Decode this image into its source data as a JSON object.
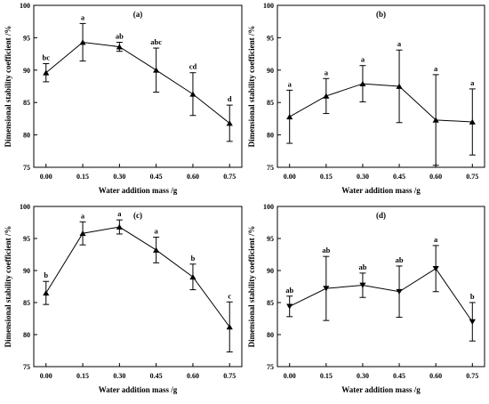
{
  "chart_data": [
    {
      "type": "line",
      "panel_label": "(a)",
      "xlabel": "Water addition mass /g",
      "ylabel": "Dimensional stability coefficient /%",
      "x": [
        0.0,
        0.15,
        0.3,
        0.45,
        0.6,
        0.75
      ],
      "x_tick_labels": [
        "0.00",
        "0.15",
        "0.30",
        "0.45",
        "0.60",
        "0.75"
      ],
      "y_ticks": [
        75,
        80,
        85,
        90,
        95,
        100
      ],
      "ylim": [
        75,
        100
      ],
      "marker": "triangle-up",
      "series": [
        {
          "values": [
            89.6,
            94.3,
            93.6,
            90.0,
            86.3,
            81.8
          ],
          "errors": [
            1.4,
            2.9,
            0.7,
            3.4,
            3.3,
            2.8
          ],
          "significance": [
            "bc",
            "a",
            "ab",
            "abc",
            "cd",
            "d"
          ]
        }
      ]
    },
    {
      "type": "line",
      "panel_label": "(b)",
      "xlabel": "Water addition mass /g",
      "ylabel": "Dimensional stability coefficient /%",
      "x": [
        0.0,
        0.15,
        0.3,
        0.45,
        0.6,
        0.75
      ],
      "x_tick_labels": [
        "0.00",
        "0.15",
        "0.30",
        "0.45",
        "0.60",
        "0.75"
      ],
      "y_ticks": [
        75,
        80,
        85,
        90,
        95,
        100
      ],
      "ylim": [
        75,
        100
      ],
      "marker": "triangle-up",
      "series": [
        {
          "values": [
            82.8,
            86.0,
            87.9,
            87.5,
            82.3,
            82.0
          ],
          "errors": [
            4.1,
            2.7,
            2.8,
            5.6,
            7.0,
            5.1
          ],
          "significance": [
            "a",
            "a",
            "a",
            "a",
            "a",
            "a"
          ]
        }
      ]
    },
    {
      "type": "line",
      "panel_label": "(c)",
      "xlabel": "Water addition mass /g",
      "ylabel": "Dimensional stability coefficient /%",
      "x": [
        0.0,
        0.15,
        0.3,
        0.45,
        0.6,
        0.75
      ],
      "x_tick_labels": [
        "0.00",
        "0.15",
        "0.30",
        "0.45",
        "0.60",
        "0.75"
      ],
      "y_ticks": [
        75,
        80,
        85,
        90,
        95,
        100
      ],
      "ylim": [
        75,
        100
      ],
      "marker": "triangle-up",
      "series": [
        {
          "values": [
            86.5,
            95.8,
            96.8,
            93.2,
            89.0,
            81.2
          ],
          "errors": [
            1.8,
            1.8,
            1.1,
            2.0,
            2.0,
            3.9
          ],
          "significance": [
            "b",
            "a",
            "a",
            "a",
            "b",
            "c"
          ]
        }
      ]
    },
    {
      "type": "line",
      "panel_label": "(d)",
      "xlabel": "Water addition mass /g",
      "ylabel": "Dimensional stability coefficient /%",
      "x": [
        0.0,
        0.15,
        0.3,
        0.45,
        0.6,
        0.75
      ],
      "x_tick_labels": [
        "0.00",
        "0.15",
        "0.30",
        "0.45",
        "0.60",
        "0.75"
      ],
      "y_ticks": [
        75,
        80,
        85,
        90,
        95,
        100
      ],
      "ylim": [
        75,
        100
      ],
      "marker": "triangle-down",
      "series": [
        {
          "values": [
            84.4,
            87.2,
            87.7,
            86.7,
            90.3,
            82.0
          ],
          "errors": [
            1.6,
            5.0,
            1.9,
            4.0,
            3.6,
            3.0
          ],
          "significance": [
            "ab",
            "ab",
            "ab",
            "ab",
            "a",
            "b"
          ]
        }
      ]
    }
  ]
}
